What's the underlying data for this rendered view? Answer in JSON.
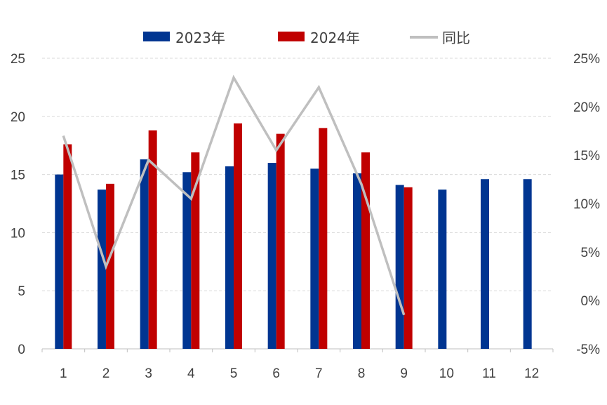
{
  "chart_data": {
    "type": "bar",
    "categories": [
      "1",
      "2",
      "3",
      "4",
      "5",
      "6",
      "7",
      "8",
      "9",
      "10",
      "11",
      "12"
    ],
    "series": [
      {
        "name": "2023年",
        "kind": "bar",
        "axis": "left",
        "color": "#003591",
        "values": [
          15.0,
          13.7,
          16.3,
          15.2,
          15.7,
          16.0,
          15.5,
          15.1,
          14.1,
          13.7,
          14.6,
          14.6
        ]
      },
      {
        "name": "2024年",
        "kind": "bar",
        "axis": "left",
        "color": "#C00000",
        "values": [
          17.6,
          14.2,
          18.8,
          16.9,
          19.4,
          18.5,
          19.0,
          16.9,
          13.9,
          null,
          null,
          null
        ]
      },
      {
        "name": "同比",
        "kind": "line",
        "axis": "right",
        "color": "#BFBFBF",
        "values": [
          17.0,
          3.5,
          14.5,
          10.5,
          23.0,
          15.5,
          22.0,
          12.0,
          -1.5,
          null,
          null,
          null
        ]
      }
    ],
    "left_axis": {
      "min": 0,
      "max": 25,
      "ticks": [
        0,
        5,
        10,
        15,
        20,
        25
      ]
    },
    "right_axis": {
      "min": -5,
      "max": 25,
      "ticks": [
        "-5%",
        "0%",
        "5%",
        "10%",
        "15%",
        "20%",
        "25%"
      ]
    },
    "gridlines": true,
    "legend_position": "top"
  }
}
